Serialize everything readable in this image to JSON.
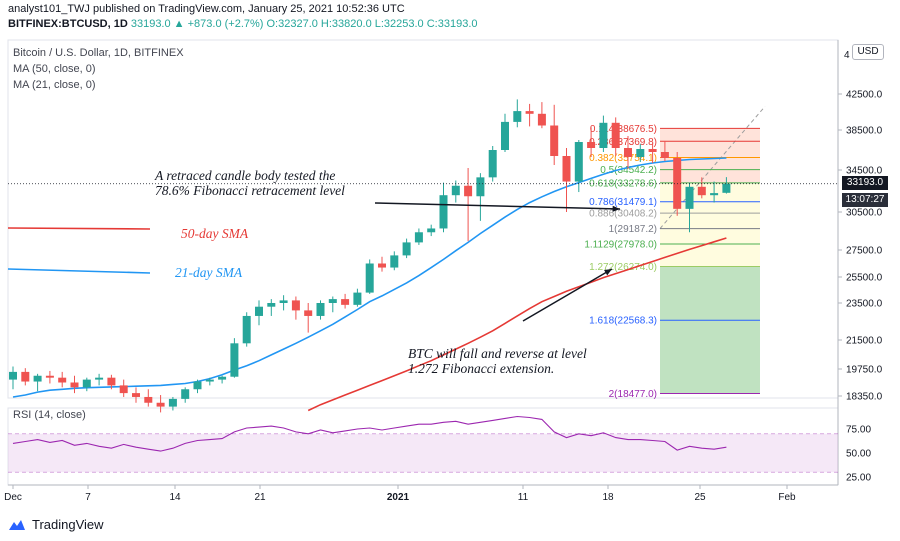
{
  "header": {
    "publisher": "analyst101_TWJ published on TradingView.com, January 25, 2021 10:52:36 UTC",
    "symbol": "BITFINEX:BTCUSD, 1D",
    "ohlc_rest": "33193.0 ▲ +873.0 (+2.7%) O:32327.0 H:33820.0 L:32253.0 C:33193.0"
  },
  "legend": {
    "title": "Bitcoin / U.S. Dollar, 1D, BITFINEX",
    "ma50": "MA (50, close, 0)",
    "ma21": "MA (21, close, 0)"
  },
  "currency_button": "USD",
  "price_axis": {
    "labels": [
      "42500.0",
      "38500.0",
      "34500.0",
      "30500.0",
      "27500.0",
      "25500.0",
      "23500.0",
      "21500.0",
      "19750.0",
      "18350.0"
    ],
    "top_partial": "4",
    "current_price": "33193.0",
    "countdown": "13:07:27"
  },
  "time_axis": {
    "labels": [
      "Dec",
      "7",
      "14",
      "21",
      "2021",
      "11",
      "18",
      "25",
      "Feb"
    ]
  },
  "rsi": {
    "label": "RSI (14, close)",
    "axis_labels": [
      "75.00",
      "50.00",
      "25.00"
    ]
  },
  "annotations": {
    "retrace_line1": "A retraced candle body tested the",
    "retrace_line2": "78.6% Fibonacci retracement level",
    "fall_line1": "BTC will fall and reverse at level",
    "fall_line2": "1.272 Fibonacci extension.",
    "sma50_label": "50-day SMA",
    "sma21_label": "21-day SMA"
  },
  "fib_levels": [
    {
      "label": "0.114(38676.5)",
      "color": "#e53935"
    },
    {
      "label": "0.236(37369.8)",
      "color": "#e53935"
    },
    {
      "label": "0.382(35754.1)",
      "color": "#ff9800"
    },
    {
      "label": "0.5(34542.2)",
      "color": "#4caf50"
    },
    {
      "label": "0.618(33278.6)",
      "color": "#4caf50"
    },
    {
      "label": "0.786(31479.1)",
      "color": "#2962ff"
    },
    {
      "label": "0.886(30408.2)",
      "color": "#9e9e9e"
    },
    {
      "label": "1(29187.2)",
      "color": "#787b86"
    },
    {
      "label": "1.1129(27978.0)",
      "color": "#4caf50"
    },
    {
      "label": "1.272(26274.0)",
      "color": "#9ccc65"
    },
    {
      "label": "1.618(22568.3)",
      "color": "#2962ff"
    },
    {
      "label": "2(18477.0)",
      "color": "#9c27b0"
    }
  ],
  "colors": {
    "up": "#26a69a",
    "down": "#ef5350",
    "ma21": "#2196f3",
    "ma50": "#e53935",
    "rsi": "#9c27b0",
    "rsi_band": "#e1bee7"
  },
  "footer": {
    "brand": "TradingView"
  },
  "chart_data": {
    "type": "candlestick",
    "title": "Bitcoin / U.S. Dollar, 1D, BITFINEX",
    "price_range": [
      18350,
      44000
    ],
    "candles": [
      {
        "o": 19200,
        "h": 19900,
        "l": 18700,
        "c": 19600
      },
      {
        "o": 19600,
        "h": 19800,
        "l": 18900,
        "c": 19100
      },
      {
        "o": 19100,
        "h": 19500,
        "l": 18600,
        "c": 19400
      },
      {
        "o": 19400,
        "h": 19650,
        "l": 19000,
        "c": 19300
      },
      {
        "o": 19300,
        "h": 19600,
        "l": 18800,
        "c": 19050
      },
      {
        "o": 19050,
        "h": 19400,
        "l": 18500,
        "c": 18800
      },
      {
        "o": 18800,
        "h": 19300,
        "l": 18600,
        "c": 19200
      },
      {
        "o": 19200,
        "h": 19500,
        "l": 18900,
        "c": 19300
      },
      {
        "o": 19300,
        "h": 19450,
        "l": 18700,
        "c": 18900
      },
      {
        "o": 18900,
        "h": 19200,
        "l": 18300,
        "c": 18500
      },
      {
        "o": 18500,
        "h": 18800,
        "l": 18000,
        "c": 18300
      },
      {
        "o": 18300,
        "h": 18700,
        "l": 17800,
        "c": 18000
      },
      {
        "o": 18000,
        "h": 18400,
        "l": 17500,
        "c": 17800
      },
      {
        "o": 17800,
        "h": 18300,
        "l": 17600,
        "c": 18200
      },
      {
        "o": 18200,
        "h": 18800,
        "l": 18000,
        "c": 18700
      },
      {
        "o": 18700,
        "h": 19200,
        "l": 18500,
        "c": 19100
      },
      {
        "o": 19100,
        "h": 19300,
        "l": 18900,
        "c": 19200
      },
      {
        "o": 19200,
        "h": 19400,
        "l": 19000,
        "c": 19350
      },
      {
        "o": 19350,
        "h": 21600,
        "l": 19300,
        "c": 21300
      },
      {
        "o": 21300,
        "h": 23000,
        "l": 21100,
        "c": 22800
      },
      {
        "o": 22800,
        "h": 23700,
        "l": 22300,
        "c": 23300
      },
      {
        "o": 23300,
        "h": 23800,
        "l": 22800,
        "c": 23500
      },
      {
        "o": 23500,
        "h": 24100,
        "l": 23100,
        "c": 23700
      },
      {
        "o": 23700,
        "h": 24000,
        "l": 22600,
        "c": 23100
      },
      {
        "o": 23100,
        "h": 23500,
        "l": 21900,
        "c": 22800
      },
      {
        "o": 22800,
        "h": 23700,
        "l": 22600,
        "c": 23500
      },
      {
        "o": 23500,
        "h": 24000,
        "l": 23000,
        "c": 23800
      },
      {
        "o": 23800,
        "h": 24200,
        "l": 23200,
        "c": 23400
      },
      {
        "o": 23400,
        "h": 24600,
        "l": 23300,
        "c": 24300
      },
      {
        "o": 24300,
        "h": 26800,
        "l": 24200,
        "c": 26500
      },
      {
        "o": 26500,
        "h": 27000,
        "l": 25900,
        "c": 26200
      },
      {
        "o": 26200,
        "h": 27400,
        "l": 26000,
        "c": 27100
      },
      {
        "o": 27100,
        "h": 28400,
        "l": 26900,
        "c": 28100
      },
      {
        "o": 28100,
        "h": 29200,
        "l": 27900,
        "c": 28900
      },
      {
        "o": 28900,
        "h": 29500,
        "l": 28600,
        "c": 29200
      },
      {
        "o": 29200,
        "h": 33300,
        "l": 28900,
        "c": 32100
      },
      {
        "o": 32100,
        "h": 33500,
        "l": 31400,
        "c": 33000
      },
      {
        "o": 33000,
        "h": 34700,
        "l": 28200,
        "c": 32000
      },
      {
        "o": 32000,
        "h": 34200,
        "l": 29800,
        "c": 33800
      },
      {
        "o": 33800,
        "h": 36900,
        "l": 33400,
        "c": 36500
      },
      {
        "o": 36500,
        "h": 40300,
        "l": 36300,
        "c": 39400
      },
      {
        "o": 39400,
        "h": 41900,
        "l": 38800,
        "c": 40600
      },
      {
        "o": 40600,
        "h": 41400,
        "l": 38900,
        "c": 40300
      },
      {
        "o": 40300,
        "h": 41600,
        "l": 38700,
        "c": 39000
      },
      {
        "o": 39000,
        "h": 41300,
        "l": 35000,
        "c": 35900
      },
      {
        "o": 35900,
        "h": 36700,
        "l": 30500,
        "c": 33400
      },
      {
        "o": 33400,
        "h": 37500,
        "l": 32400,
        "c": 37300
      },
      {
        "o": 37300,
        "h": 38800,
        "l": 35800,
        "c": 36700
      },
      {
        "o": 36700,
        "h": 40100,
        "l": 36300,
        "c": 39300
      },
      {
        "o": 39300,
        "h": 39900,
        "l": 35900,
        "c": 36700
      },
      {
        "o": 36700,
        "h": 37900,
        "l": 34600,
        "c": 35800
      },
      {
        "o": 35800,
        "h": 37100,
        "l": 35300,
        "c": 36600
      },
      {
        "o": 36600,
        "h": 37200,
        "l": 35200,
        "c": 36300
      },
      {
        "o": 36300,
        "h": 37400,
        "l": 35400,
        "c": 35700
      },
      {
        "o": 35700,
        "h": 36300,
        "l": 30200,
        "c": 30800
      },
      {
        "o": 30800,
        "h": 33300,
        "l": 28900,
        "c": 32900
      },
      {
        "o": 32900,
        "h": 33800,
        "l": 31800,
        "c": 32100
      },
      {
        "o": 32100,
        "h": 33400,
        "l": 31400,
        "c": 32300
      },
      {
        "o": 32327,
        "h": 33820,
        "l": 32253,
        "c": 33193
      }
    ],
    "ma21": [
      18300,
      18400,
      18550,
      18650,
      18700,
      18750,
      18780,
      18800,
      18820,
      18840,
      18860,
      18880,
      18900,
      18950,
      19000,
      19100,
      19250,
      19450,
      19700,
      19950,
      20250,
      20600,
      20950,
      21300,
      21650,
      22000,
      22350,
      22750,
      23150,
      23600,
      24050,
      24550,
      25050,
      25600,
      26200,
      26800,
      27450,
      28100,
      28800,
      29450,
      30100,
      30750,
      31400,
      31950,
      32450,
      32900,
      33300,
      33700,
      34100,
      34450,
      34750,
      35000,
      35200,
      35350,
      35450,
      35550,
      35600,
      35650,
      35700
    ],
    "ma50": [
      null,
      null,
      null,
      null,
      null,
      null,
      null,
      null,
      null,
      null,
      null,
      null,
      null,
      null,
      null,
      null,
      null,
      null,
      null,
      null,
      null,
      null,
      null,
      null,
      17600,
      17900,
      18150,
      18400,
      18650,
      18900,
      19150,
      19400,
      19650,
      19950,
      20250,
      20600,
      20950,
      21300,
      21650,
      22000,
      22400,
      22800,
      23200,
      23600,
      24000,
      24400,
      24750,
      25100,
      25450,
      25750,
      26050,
      26350,
      26650,
      26950,
      27250,
      27550,
      27850,
      28150,
      28450
    ],
    "rsi": [
      60,
      62,
      64,
      61,
      63,
      58,
      60,
      57,
      55,
      59,
      56,
      54,
      52,
      55,
      60,
      63,
      64,
      65,
      72,
      76,
      77,
      78,
      76,
      72,
      70,
      74,
      71,
      73,
      75,
      76,
      74,
      76,
      78,
      80,
      80,
      82,
      83,
      80,
      82,
      84,
      86,
      88,
      87,
      85,
      72,
      66,
      70,
      68,
      71,
      66,
      64,
      64,
      63,
      62,
      53,
      57,
      55,
      54,
      56
    ]
  }
}
